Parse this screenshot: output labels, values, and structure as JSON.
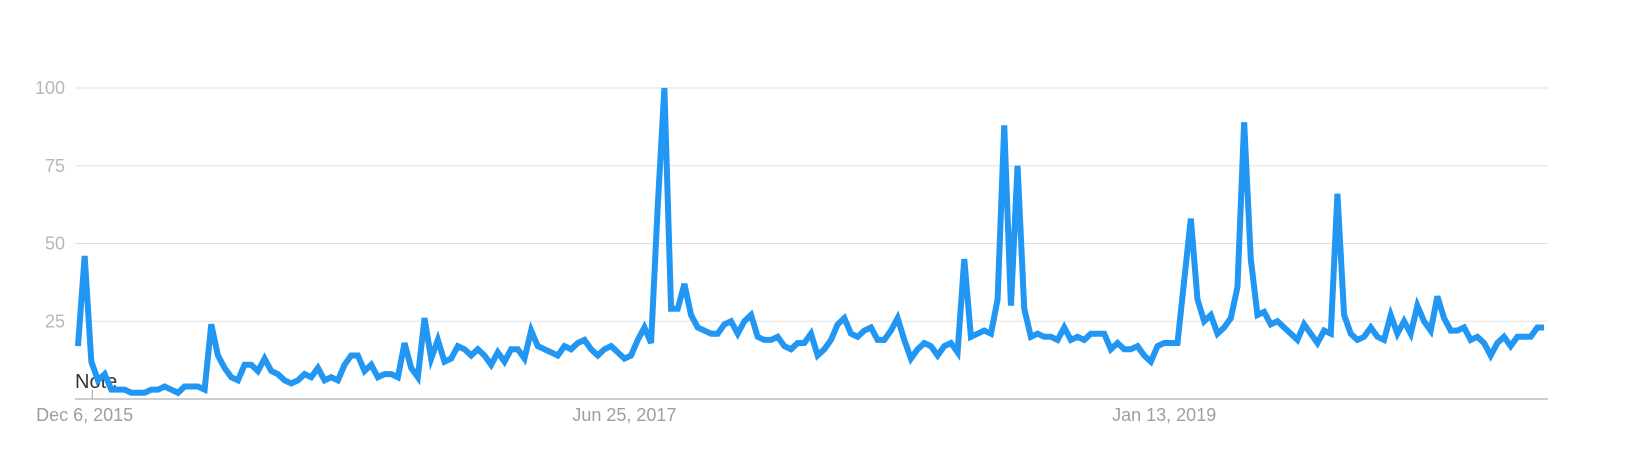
{
  "chart_data": {
    "type": "line",
    "title": "",
    "xlabel": "",
    "ylabel": "",
    "ylim": [
      0,
      100
    ],
    "y_ticks": [
      25,
      50,
      75,
      100
    ],
    "x_tick_labels": [
      {
        "label": "Dec 6, 2015",
        "date": "2015-12-06"
      },
      {
        "label": "Jun 25, 2017",
        "date": "2017-06-25"
      },
      {
        "label": "Jan 13, 2019",
        "date": "2019-01-13"
      }
    ],
    "start_date": "2015-11-29",
    "interval": "weekly",
    "grid": true,
    "annotation": {
      "label": "Note",
      "date": "2015-12-13"
    },
    "series_color": "#2196f3",
    "series": [
      {
        "values": [
          17,
          46,
          12,
          6,
          8,
          3,
          3,
          3,
          2,
          2,
          2,
          3,
          3,
          4,
          3,
          2,
          4,
          4,
          4,
          3,
          24,
          14,
          10,
          7,
          6,
          11,
          11,
          9,
          13,
          9,
          8,
          6,
          5,
          6,
          8,
          7,
          10,
          6,
          7,
          6,
          11,
          14,
          14,
          9,
          11,
          7,
          8,
          8,
          7,
          18,
          10,
          7,
          26,
          13,
          19,
          12,
          13,
          17,
          16,
          14,
          16,
          14,
          11,
          15,
          12,
          16,
          16,
          13,
          22,
          17,
          16,
          15,
          14,
          17,
          16,
          18,
          19,
          16,
          14,
          16,
          17,
          15,
          13,
          14,
          19,
          23,
          18,
          62,
          100,
          29,
          29,
          37,
          27,
          23,
          22,
          21,
          21,
          24,
          25,
          21,
          25,
          27,
          20,
          19,
          19,
          20,
          17,
          16,
          18,
          18,
          21,
          14,
          16,
          19,
          24,
          26,
          21,
          20,
          22,
          23,
          19,
          19,
          22,
          26,
          19,
          13,
          16,
          18,
          17,
          14,
          17,
          18,
          15,
          45,
          20,
          21,
          22,
          21,
          32,
          88,
          30,
          75,
          29,
          20,
          21,
          20,
          20,
          19,
          23,
          19,
          20,
          19,
          21,
          21,
          21,
          16,
          18,
          16,
          16,
          17,
          14,
          12,
          17,
          18,
          18,
          18,
          38,
          58,
          32,
          25,
          27,
          21,
          23,
          26,
          36,
          89,
          45,
          27,
          28,
          24,
          25,
          23,
          21,
          19,
          24,
          21,
          18,
          22,
          21,
          66,
          27,
          21,
          19,
          20,
          23,
          20,
          19,
          27,
          21,
          25,
          21,
          30,
          25,
          22,
          33,
          26,
          22,
          22,
          23,
          19,
          20,
          18,
          14,
          18,
          20,
          17,
          20,
          20,
          20,
          23,
          23
        ]
      }
    ]
  }
}
